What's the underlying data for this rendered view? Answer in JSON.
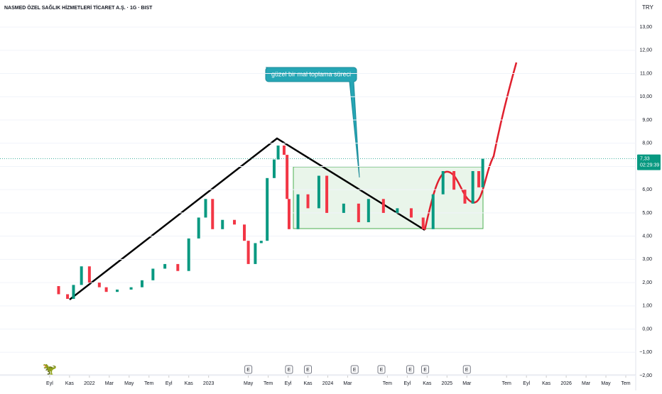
{
  "chart_data": {
    "type": "candlestick",
    "title": "NASMED ÖZEL SAĞLIK HİZMETLERİ TİCARET A.Ş. · 1G · BIST",
    "currency": "TRY",
    "annotation": "güzel bir mal toplama süreci",
    "last_price": {
      "value": 7.33,
      "label": "7,33"
    },
    "countdown": "02:29:39",
    "xlim": [
      -5,
      59
    ],
    "ylim": [
      -2,
      13.4
    ],
    "yticks": [
      {
        "value": -2,
        "label": "−2,00"
      },
      {
        "value": -1,
        "label": "−1,00"
      },
      {
        "value": 0,
        "label": "0,00"
      },
      {
        "value": 1,
        "label": "1,00"
      },
      {
        "value": 2,
        "label": "2,00"
      },
      {
        "value": 3,
        "label": "3,00"
      },
      {
        "value": 4,
        "label": "4,00"
      },
      {
        "value": 5,
        "label": "5,00"
      },
      {
        "value": 6,
        "label": "6,00"
      },
      {
        "value": 7,
        "label": "7,00"
      },
      {
        "value": 8,
        "label": "8,00"
      },
      {
        "value": 9,
        "label": "9,00"
      },
      {
        "value": 10,
        "label": "10,00"
      },
      {
        "value": 11,
        "label": "11,00"
      },
      {
        "value": 12,
        "label": "12,00"
      },
      {
        "value": 13,
        "label": "13,00"
      }
    ],
    "xticks": [
      {
        "value": 0,
        "label": "Eyl"
      },
      {
        "value": 2,
        "label": "Kas"
      },
      {
        "value": 4,
        "label": "2022"
      },
      {
        "value": 6,
        "label": "Mar"
      },
      {
        "value": 8,
        "label": "May"
      },
      {
        "value": 10,
        "label": "Tem"
      },
      {
        "value": 12,
        "label": "Eyl"
      },
      {
        "value": 14,
        "label": "Kas"
      },
      {
        "value": 16,
        "label": "2023"
      },
      {
        "value": 20,
        "label": "May"
      },
      {
        "value": 22,
        "label": "Tem"
      },
      {
        "value": 24,
        "label": "Eyl"
      },
      {
        "value": 26,
        "label": "Kas"
      },
      {
        "value": 28,
        "label": "2024"
      },
      {
        "value": 30,
        "label": "Mar"
      },
      {
        "value": 34,
        "label": "Tem"
      },
      {
        "value": 36,
        "label": "Eyl"
      },
      {
        "value": 38,
        "label": "Kas"
      },
      {
        "value": 40,
        "label": "2025"
      },
      {
        "value": 42,
        "label": "Mar"
      },
      {
        "value": 46,
        "label": "Tem"
      },
      {
        "value": 48,
        "label": "Eyl"
      },
      {
        "value": 50,
        "label": "Kas"
      },
      {
        "value": 52,
        "label": "2026"
      },
      {
        "value": 54,
        "label": "Mar"
      },
      {
        "value": 56,
        "label": "May"
      },
      {
        "value": 58,
        "label": "Tem"
      }
    ],
    "events": [
      {
        "label": "E",
        "x": 20
      },
      {
        "label": "E",
        "x": 24.1
      },
      {
        "label": "E",
        "x": 26
      },
      {
        "label": "E",
        "x": 30.7
      },
      {
        "label": "E",
        "x": 33.4
      },
      {
        "label": "E",
        "x": 36.3
      },
      {
        "label": "E",
        "x": 37.8
      },
      {
        "label": "E",
        "x": 42
      }
    ],
    "series": [
      {
        "name": "NASMED",
        "up_color": "#089981",
        "down_color": "#f23645",
        "x": [
          0.1,
          0.9,
          1.8,
          2.4,
          3.2,
          4.0,
          5.0,
          5.7,
          6.8,
          8.2,
          9.3,
          10.4,
          11.6,
          12.9,
          14.0,
          15.0,
          15.7,
          16.4,
          17.4,
          18.6,
          19.6,
          20.0,
          20.7,
          21.3,
          21.9,
          22.6,
          23.0,
          23.6,
          23.9,
          24.1,
          25.0,
          26.0,
          27.1,
          27.9,
          29.6,
          31.1,
          32.1,
          33.6,
          35.0,
          36.4,
          37.6,
          38.6,
          39.6,
          40.7,
          41.8,
          42.6,
          43.2,
          43.6
        ],
        "values": [
          1.85,
          1.5,
          1.3,
          1.9,
          2.7,
          2.0,
          1.8,
          1.6,
          1.7,
          1.8,
          2.1,
          2.6,
          2.8,
          2.5,
          3.9,
          4.8,
          5.6,
          4.3,
          4.7,
          4.5,
          3.8,
          2.8,
          3.7,
          3.8,
          6.5,
          7.3,
          7.9,
          7.5,
          5.6,
          4.3,
          5.8,
          5.2,
          6.6,
          5.0,
          5.4,
          4.6,
          5.6,
          5.0,
          5.2,
          4.8,
          4.3,
          5.8,
          6.8,
          6.0,
          5.4,
          6.8,
          6.1,
          7.33
        ]
      }
    ]
  }
}
